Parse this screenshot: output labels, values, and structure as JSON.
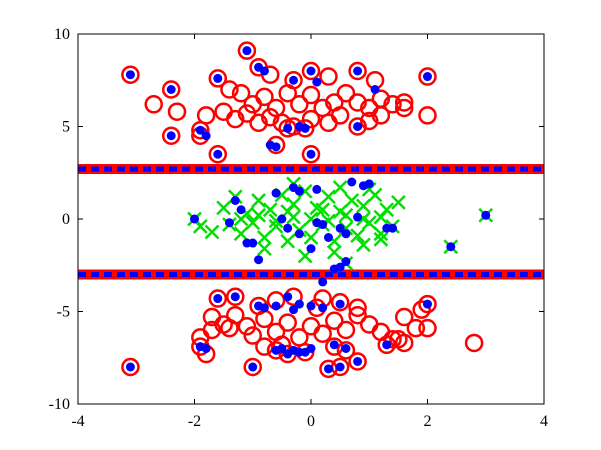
{
  "chart_data": {
    "type": "scatter",
    "title": "",
    "xlabel": "",
    "ylabel": "",
    "xlim": [
      -4,
      4
    ],
    "ylim": [
      -10,
      10
    ],
    "x_ticks": [
      -4,
      -2,
      0,
      2,
      4
    ],
    "y_ticks": [
      -10,
      -5,
      0,
      5,
      10
    ],
    "x_tick_labels": [
      "-4",
      "-2",
      "0",
      "2",
      "4"
    ],
    "y_tick_labels": [
      "-10",
      "-5",
      "0",
      "5",
      "10"
    ],
    "grid": false,
    "legend": "none",
    "colors": {
      "red_circles": "#ff0000",
      "green_crosses": "#00e000",
      "blue_dots": "#0000ff",
      "line_red": "#ff0000",
      "line_blue": "#0000ff"
    },
    "horizontal_lines": [
      {
        "y": 2.7,
        "style": "red solid with blue dashes"
      },
      {
        "y": -3.0,
        "style": "red solid with blue dashes"
      }
    ],
    "series": [
      {
        "marker": "circle",
        "color": "#ff0000",
        "points": [
          [
            -1.1,
            9.1
          ],
          [
            -0.9,
            8.2
          ],
          [
            -0.7,
            7.8
          ],
          [
            -0.3,
            7.5
          ],
          [
            0.0,
            8.0
          ],
          [
            0.3,
            7.7
          ],
          [
            0.8,
            8.0
          ],
          [
            1.1,
            7.5
          ],
          [
            -3.1,
            7.8
          ],
          [
            -2.4,
            7.0
          ],
          [
            -2.7,
            6.2
          ],
          [
            -2.3,
            5.8
          ],
          [
            -1.6,
            7.6
          ],
          [
            -1.4,
            7.0
          ],
          [
            -1.2,
            6.8
          ],
          [
            -1.0,
            6.2
          ],
          [
            -0.8,
            6.6
          ],
          [
            -0.6,
            6.0
          ],
          [
            -0.4,
            6.8
          ],
          [
            -0.2,
            6.2
          ],
          [
            0.0,
            6.7
          ],
          [
            0.2,
            6.0
          ],
          [
            0.4,
            6.3
          ],
          [
            0.6,
            6.8
          ],
          [
            0.8,
            6.3
          ],
          [
            1.0,
            6.0
          ],
          [
            1.2,
            6.5
          ],
          [
            1.4,
            6.2
          ],
          [
            1.6,
            6.0
          ],
          [
            2.0,
            7.7
          ],
          [
            1.6,
            6.3
          ],
          [
            2.0,
            5.6
          ],
          [
            -1.8,
            5.6
          ],
          [
            -1.5,
            5.8
          ],
          [
            -1.3,
            5.4
          ],
          [
            -1.1,
            5.7
          ],
          [
            -0.9,
            5.2
          ],
          [
            -0.7,
            5.5
          ],
          [
            -0.5,
            5.2
          ],
          [
            -0.3,
            5.0
          ],
          [
            0.0,
            5.4
          ],
          [
            0.3,
            5.2
          ],
          [
            0.5,
            5.6
          ],
          [
            0.8,
            5.0
          ],
          [
            1.0,
            5.3
          ],
          [
            1.2,
            5.6
          ],
          [
            -2.4,
            4.5
          ],
          [
            -1.9,
            4.8
          ],
          [
            -1.6,
            3.5
          ],
          [
            -0.6,
            4.0
          ],
          [
            0.0,
            3.5
          ],
          [
            -1.9,
            4.5
          ],
          [
            -0.4,
            4.9
          ],
          [
            -0.1,
            4.9
          ],
          [
            -3.1,
            -8.0
          ],
          [
            -1.9,
            -6.9
          ],
          [
            -1.8,
            -7.3
          ],
          [
            -1.6,
            -4.3
          ],
          [
            -1.3,
            -4.2
          ],
          [
            -1.7,
            -5.3
          ],
          [
            -1.5,
            -5.7
          ],
          [
            -1.3,
            -5.2
          ],
          [
            -1.1,
            -5.8
          ],
          [
            -1.0,
            -6.3
          ],
          [
            -0.8,
            -5.4
          ],
          [
            -0.6,
            -6.1
          ],
          [
            -0.4,
            -5.6
          ],
          [
            -0.2,
            -6.4
          ],
          [
            0.0,
            -5.8
          ],
          [
            0.2,
            -6.2
          ],
          [
            0.4,
            -5.5
          ],
          [
            0.6,
            -6.0
          ],
          [
            0.8,
            -5.2
          ],
          [
            1.0,
            -5.7
          ],
          [
            1.2,
            -6.1
          ],
          [
            1.4,
            -6.5
          ],
          [
            1.6,
            -6.7
          ],
          [
            1.8,
            -5.9
          ],
          [
            1.6,
            -5.3
          ],
          [
            1.9,
            -4.9
          ],
          [
            2.0,
            -4.6
          ],
          [
            2.0,
            -5.9
          ],
          [
            2.8,
            -6.7
          ],
          [
            -1.9,
            -6.4
          ],
          [
            -1.7,
            -6.0
          ],
          [
            -1.4,
            -5.9
          ],
          [
            -1.0,
            -8.0
          ],
          [
            -0.6,
            -7.1
          ],
          [
            -0.4,
            -7.3
          ],
          [
            -0.1,
            -7.2
          ],
          [
            0.3,
            -8.1
          ],
          [
            0.5,
            -8.0
          ],
          [
            0.8,
            -7.7
          ],
          [
            1.3,
            -6.8
          ],
          [
            1.5,
            -6.5
          ],
          [
            0.1,
            -4.8
          ],
          [
            0.5,
            -4.5
          ],
          [
            -0.6,
            -4.4
          ],
          [
            -0.9,
            -4.7
          ],
          [
            0.8,
            -4.8
          ],
          [
            0.2,
            -4.3
          ],
          [
            -0.3,
            -4.2
          ],
          [
            -0.5,
            -6.8
          ],
          [
            0.4,
            -6.9
          ],
          [
            0.6,
            -7.1
          ],
          [
            -0.8,
            -6.9
          ]
        ]
      },
      {
        "marker": "x",
        "color": "#00e000",
        "points": [
          [
            -2.0,
            0.0
          ],
          [
            -1.9,
            -0.4
          ],
          [
            -1.5,
            0.6
          ],
          [
            -1.3,
            1.2
          ],
          [
            -1.1,
            0.3
          ],
          [
            -0.9,
            1.0
          ],
          [
            -0.7,
            0.5
          ],
          [
            -0.5,
            1.3
          ],
          [
            -0.3,
            0.8
          ],
          [
            -0.1,
            1.5
          ],
          [
            0.1,
            0.6
          ],
          [
            0.3,
            1.2
          ],
          [
            0.5,
            0.4
          ],
          [
            0.7,
            1.0
          ],
          [
            0.9,
            0.7
          ],
          [
            1.1,
            1.3
          ],
          [
            1.3,
            0.5
          ],
          [
            1.5,
            0.9
          ],
          [
            -1.4,
            -0.3
          ],
          [
            -1.2,
            -0.8
          ],
          [
            -1.0,
            -0.2
          ],
          [
            -0.8,
            -1.0
          ],
          [
            -0.6,
            -0.4
          ],
          [
            -0.4,
            -1.2
          ],
          [
            -0.2,
            -0.6
          ],
          [
            0.0,
            -1.0
          ],
          [
            0.2,
            -0.3
          ],
          [
            0.4,
            -1.2
          ],
          [
            0.6,
            -0.5
          ],
          [
            0.8,
            -0.9
          ],
          [
            1.0,
            -0.2
          ],
          [
            1.2,
            -1.1
          ],
          [
            1.4,
            -0.4
          ],
          [
            -1.2,
            0.0
          ],
          [
            -0.9,
            0.2
          ],
          [
            -0.6,
            -0.1
          ],
          [
            -0.3,
            0.1
          ],
          [
            0.0,
            0.0
          ],
          [
            0.3,
            -0.1
          ],
          [
            0.6,
            0.2
          ],
          [
            0.9,
            0.0
          ],
          [
            1.2,
            0.1
          ],
          [
            -0.4,
            0.4
          ],
          [
            0.2,
            0.5
          ],
          [
            -0.8,
            -1.6
          ],
          [
            0.4,
            -1.8
          ],
          [
            0.9,
            -1.4
          ],
          [
            1.2,
            -0.8
          ],
          [
            -0.3,
            1.9
          ],
          [
            0.5,
            1.7
          ],
          [
            1.0,
            1.6
          ],
          [
            2.4,
            -1.5
          ],
          [
            3.0,
            0.2
          ],
          [
            -1.7,
            -0.7
          ],
          [
            -0.1,
            -2.0
          ],
          [
            0.6,
            -2.4
          ]
        ]
      },
      {
        "marker": "dot",
        "color": "#0000ff",
        "points": [
          [
            -1.1,
            9.1
          ],
          [
            -0.9,
            8.2
          ],
          [
            -0.8,
            8.0
          ],
          [
            -0.3,
            7.5
          ],
          [
            0.0,
            8.0
          ],
          [
            0.8,
            8.0
          ],
          [
            0.1,
            7.4
          ],
          [
            -3.1,
            7.8
          ],
          [
            -2.4,
            7.0
          ],
          [
            -1.6,
            7.6
          ],
          [
            2.0,
            7.7
          ],
          [
            1.1,
            7.0
          ],
          [
            -2.4,
            4.5
          ],
          [
            -1.9,
            4.8
          ],
          [
            -1.8,
            4.5
          ],
          [
            -0.4,
            4.9
          ],
          [
            -0.2,
            5.0
          ],
          [
            -0.1,
            4.9
          ],
          [
            0.8,
            5.0
          ],
          [
            -1.6,
            3.5
          ],
          [
            -0.7,
            4.0
          ],
          [
            -0.6,
            3.9
          ],
          [
            0.0,
            3.5
          ],
          [
            -2.0,
            0.0
          ],
          [
            -1.3,
            1.0
          ],
          [
            -1.2,
            0.5
          ],
          [
            -1.1,
            -1.3
          ],
          [
            -1.0,
            -1.3
          ],
          [
            -0.9,
            -2.2
          ],
          [
            -0.6,
            1.4
          ],
          [
            -0.3,
            1.7
          ],
          [
            -0.2,
            1.5
          ],
          [
            0.1,
            1.6
          ],
          [
            -0.5,
            0.0
          ],
          [
            -0.4,
            -0.5
          ],
          [
            -0.2,
            -0.8
          ],
          [
            0.1,
            -0.2
          ],
          [
            0.2,
            -0.3
          ],
          [
            0.3,
            -1.0
          ],
          [
            0.5,
            -0.5
          ],
          [
            0.6,
            -0.8
          ],
          [
            0.9,
            1.8
          ],
          [
            1.0,
            1.9
          ],
          [
            0.7,
            2.0
          ],
          [
            0.8,
            0.1
          ],
          [
            1.3,
            -0.5
          ],
          [
            1.4,
            -0.5
          ],
          [
            0.4,
            -2.7
          ],
          [
            0.5,
            -2.6
          ],
          [
            0.6,
            -2.3
          ],
          [
            0.0,
            -1.6
          ],
          [
            0.2,
            -3.4
          ],
          [
            3.0,
            0.2
          ],
          [
            2.4,
            -1.5
          ],
          [
            -1.4,
            -0.2
          ],
          [
            -3.1,
            -8.0
          ],
          [
            -1.9,
            -6.9
          ],
          [
            -1.8,
            -7.0
          ],
          [
            -1.6,
            -4.3
          ],
          [
            -1.3,
            -4.2
          ],
          [
            -0.9,
            -4.7
          ],
          [
            -0.8,
            -4.8
          ],
          [
            -0.4,
            -4.2
          ],
          [
            -0.2,
            -4.6
          ],
          [
            0.0,
            -4.7
          ],
          [
            0.2,
            -4.8
          ],
          [
            0.5,
            -4.6
          ],
          [
            -0.3,
            -4.9
          ],
          [
            -0.6,
            -4.7
          ],
          [
            2.0,
            -4.6
          ],
          [
            -1.0,
            -8.0
          ],
          [
            -0.6,
            -7.1
          ],
          [
            -0.4,
            -7.3
          ],
          [
            -0.3,
            -7.1
          ],
          [
            -0.1,
            -7.2
          ],
          [
            0.0,
            -7.0
          ],
          [
            0.3,
            -8.1
          ],
          [
            0.5,
            -8.0
          ],
          [
            0.8,
            -7.7
          ],
          [
            1.3,
            -6.8
          ],
          [
            0.4,
            -6.8
          ],
          [
            0.6,
            -7.0
          ],
          [
            -0.5,
            -7.0
          ],
          [
            -0.2,
            -7.2
          ]
        ]
      }
    ]
  }
}
